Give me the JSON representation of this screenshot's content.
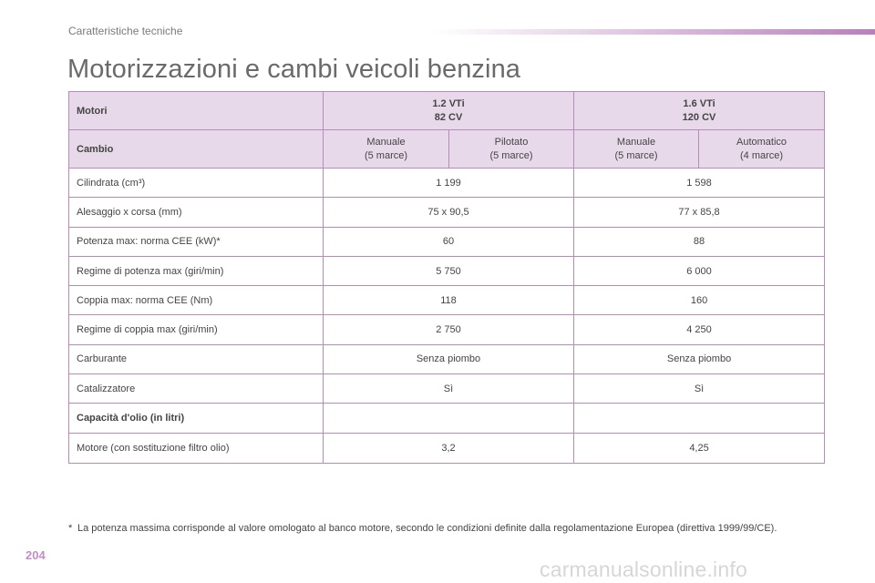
{
  "section_header": "Caratteristiche tecniche",
  "page_title": "Motorizzazioni e cambi veicoli benzina",
  "table": {
    "engines_label": "Motori",
    "engine_1": {
      "name": "1.2 VTi",
      "power": "82 CV"
    },
    "engine_2": {
      "name": "1.6 VTi",
      "power": "120 CV"
    },
    "gearbox_label": "Cambio",
    "gearboxes": [
      {
        "name": "Manuale",
        "detail": "(5 marce)"
      },
      {
        "name": "Pilotato",
        "detail": "(5 marce)"
      },
      {
        "name": "Manuale",
        "detail": "(5 marce)"
      },
      {
        "name": "Automatico",
        "detail": "(4 marce)"
      }
    ],
    "rows": [
      {
        "label": "Cilindrata (cm³)",
        "v1": "1 199",
        "v2": "1 598"
      },
      {
        "label": "Alesaggio x corsa (mm)",
        "v1": "75 x 90,5",
        "v2": "77 x 85,8"
      },
      {
        "label": "Potenza max: norma CEE (kW)*",
        "v1": "60",
        "v2": "88"
      },
      {
        "label": "Regime di potenza max (giri/min)",
        "v1": "5 750",
        "v2": "6 000"
      },
      {
        "label": "Coppia max: norma CEE (Nm)",
        "v1": "118",
        "v2": "160"
      },
      {
        "label": "Regime di coppia max (giri/min)",
        "v1": "2 750",
        "v2": "4 250"
      },
      {
        "label": "Carburante",
        "v1": "Senza piombo",
        "v2": "Senza piombo"
      },
      {
        "label": "Catalizzatore",
        "v1": "Sì",
        "v2": "Sì"
      }
    ],
    "oil_title": "Capacità d'olio (in litri)",
    "oil_row": {
      "label": "Motore (con sostituzione filtro olio)",
      "v1": "3,2",
      "v2": "4,25"
    }
  },
  "footnote": {
    "marker": "*",
    "text": "La potenza massima corrisponde al valore omologato al banco motore, secondo le condizioni definite dalla regolamentazione Europea (direttiva 1999/99/CE)."
  },
  "page_number": "204",
  "watermark": "carmanualsonline.info",
  "colors": {
    "accent": "#b98bbd",
    "header_fill": "#e8d9ea",
    "page_number": "#c28ec4"
  }
}
